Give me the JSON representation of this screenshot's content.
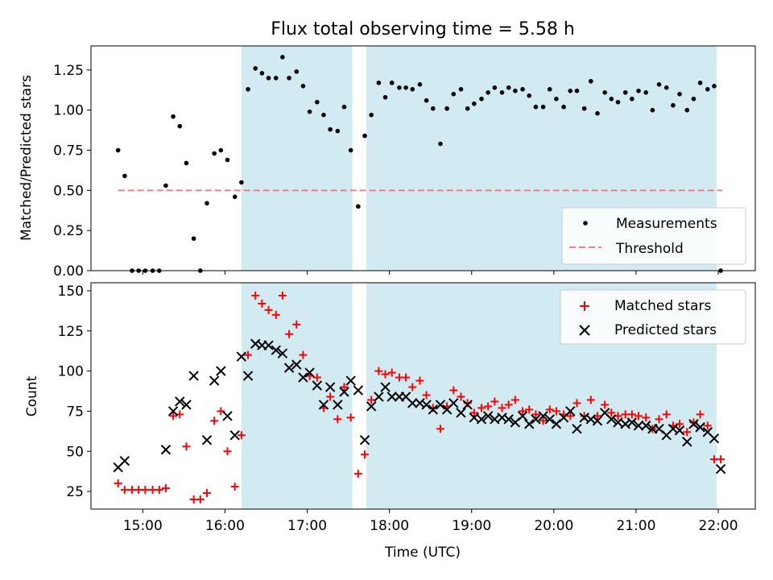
{
  "title": "Flux total observing time = 5.58 h",
  "colors": {
    "band": "#add8e6",
    "measurement": "#000000",
    "threshold": "#f08080",
    "matched": "#ff0000",
    "predicted": "#000000"
  },
  "x_tick_labels": [
    "15:00",
    "16:00",
    "17:00",
    "18:00",
    "19:00",
    "20:00",
    "21:00",
    "22:00"
  ],
  "chart_data": [
    {
      "type": "scatter",
      "ylabel": "Matched/Predicted stars",
      "xlabel": "",
      "x_unit": "hours (UTC)",
      "xlim": [
        14.37,
        22.45
      ],
      "ylim": [
        0,
        1.4
      ],
      "y_ticks": [
        0.0,
        0.25,
        0.5,
        0.75,
        1.0,
        1.25
      ],
      "y_tick_labels": [
        "0.00",
        "0.25",
        "0.50",
        "0.75",
        "1.00",
        "1.25"
      ],
      "legend": {
        "position": "lower right",
        "entries": [
          "Measurements",
          "Threshold"
        ]
      },
      "shaded_intervals": [
        [
          16.2,
          17.55
        ],
        [
          17.72,
          21.98
        ]
      ],
      "threshold": {
        "name": "Threshold",
        "y": 0.5,
        "x_range": [
          14.7,
          22.05
        ]
      },
      "series": [
        {
          "name": "Measurements",
          "points": [
            [
              14.7,
              0.75
            ],
            [
              14.78,
              0.59
            ],
            [
              14.87,
              0.0
            ],
            [
              14.95,
              0.0
            ],
            [
              15.03,
              0.0
            ],
            [
              15.12,
              0.0
            ],
            [
              15.2,
              0.0
            ],
            [
              15.28,
              0.53
            ],
            [
              15.37,
              0.96
            ],
            [
              15.45,
              0.9
            ],
            [
              15.53,
              0.67
            ],
            [
              15.62,
              0.2
            ],
            [
              15.7,
              0.0
            ],
            [
              15.78,
              0.42
            ],
            [
              15.87,
              0.73
            ],
            [
              15.95,
              0.75
            ],
            [
              16.03,
              0.69
            ],
            [
              16.12,
              0.46
            ],
            [
              16.2,
              0.55
            ],
            [
              16.28,
              1.13
            ],
            [
              16.37,
              1.26
            ],
            [
              16.45,
              1.23
            ],
            [
              16.53,
              1.2
            ],
            [
              16.62,
              1.2
            ],
            [
              16.7,
              1.33
            ],
            [
              16.78,
              1.2
            ],
            [
              16.87,
              1.24
            ],
            [
              16.95,
              1.15
            ],
            [
              17.03,
              0.99
            ],
            [
              17.12,
              1.05
            ],
            [
              17.2,
              0.97
            ],
            [
              17.28,
              0.88
            ],
            [
              17.37,
              0.87
            ],
            [
              17.45,
              1.02
            ],
            [
              17.53,
              0.75
            ],
            [
              17.62,
              0.4
            ],
            [
              17.7,
              0.84
            ],
            [
              17.78,
              0.97
            ],
            [
              17.87,
              1.17
            ],
            [
              17.95,
              1.08
            ],
            [
              18.03,
              1.17
            ],
            [
              18.12,
              1.14
            ],
            [
              18.2,
              1.14
            ],
            [
              18.28,
              1.13
            ],
            [
              18.37,
              1.16
            ],
            [
              18.45,
              1.06
            ],
            [
              18.53,
              1.01
            ],
            [
              18.62,
              0.79
            ],
            [
              18.7,
              1.01
            ],
            [
              18.78,
              1.1
            ],
            [
              18.87,
              1.13
            ],
            [
              18.95,
              1.01
            ],
            [
              19.03,
              1.04
            ],
            [
              19.12,
              1.07
            ],
            [
              19.2,
              1.11
            ],
            [
              19.28,
              1.14
            ],
            [
              19.37,
              1.11
            ],
            [
              19.45,
              1.14
            ],
            [
              19.53,
              1.12
            ],
            [
              19.62,
              1.13
            ],
            [
              19.7,
              1.09
            ],
            [
              19.78,
              1.02
            ],
            [
              19.87,
              1.02
            ],
            [
              19.95,
              1.13
            ],
            [
              20.03,
              1.07
            ],
            [
              20.12,
              1.02
            ],
            [
              20.2,
              1.12
            ],
            [
              20.28,
              1.12
            ],
            [
              20.37,
              1.01
            ],
            [
              20.45,
              1.18
            ],
            [
              20.53,
              0.98
            ],
            [
              20.62,
              1.11
            ],
            [
              20.7,
              1.07
            ],
            [
              20.78,
              1.05
            ],
            [
              20.87,
              1.11
            ],
            [
              20.95,
              1.07
            ],
            [
              21.03,
              1.12
            ],
            [
              21.12,
              1.11
            ],
            [
              21.2,
              1.0
            ],
            [
              21.28,
              1.16
            ],
            [
              21.37,
              1.14
            ],
            [
              21.45,
              1.03
            ],
            [
              21.53,
              1.1
            ],
            [
              21.62,
              1.0
            ],
            [
              21.7,
              1.07
            ],
            [
              21.78,
              1.17
            ],
            [
              21.87,
              1.13
            ],
            [
              21.95,
              1.15
            ],
            [
              22.03,
              0.0
            ]
          ]
        }
      ]
    },
    {
      "type": "scatter",
      "ylabel": "Count",
      "xlabel": "Time (UTC)",
      "x_unit": "hours (UTC)",
      "xlim": [
        14.37,
        22.45
      ],
      "ylim": [
        14,
        155
      ],
      "y_ticks": [
        25,
        50,
        75,
        100,
        125,
        150
      ],
      "y_tick_labels": [
        "25",
        "50",
        "75",
        "100",
        "125",
        "150"
      ],
      "legend": {
        "position": "upper right",
        "entries": [
          "Matched stars",
          "Predicted stars"
        ]
      },
      "shaded_intervals": [
        [
          16.2,
          17.55
        ],
        [
          17.72,
          21.98
        ]
      ],
      "series": [
        {
          "name": "Matched stars",
          "marker": "plus",
          "points": [
            [
              14.7,
              30
            ],
            [
              14.78,
              26
            ],
            [
              14.87,
              26
            ],
            [
              14.95,
              26
            ],
            [
              15.03,
              26
            ],
            [
              15.12,
              26
            ],
            [
              15.2,
              26
            ],
            [
              15.28,
              27
            ],
            [
              15.37,
              72
            ],
            [
              15.45,
              73
            ],
            [
              15.53,
              53
            ],
            [
              15.62,
              20
            ],
            [
              15.7,
              20
            ],
            [
              15.78,
              24
            ],
            [
              15.87,
              69
            ],
            [
              15.95,
              75
            ],
            [
              16.03,
              50
            ],
            [
              16.12,
              28
            ],
            [
              16.2,
              60
            ],
            [
              16.28,
              110
            ],
            [
              16.37,
              147
            ],
            [
              16.45,
              142
            ],
            [
              16.53,
              138
            ],
            [
              16.62,
              135
            ],
            [
              16.7,
              147
            ],
            [
              16.78,
              123
            ],
            [
              16.87,
              129
            ],
            [
              16.95,
              110
            ],
            [
              17.03,
              97
            ],
            [
              17.12,
              96
            ],
            [
              17.2,
              77
            ],
            [
              17.28,
              84
            ],
            [
              17.37,
              70
            ],
            [
              17.45,
              90
            ],
            [
              17.53,
              71
            ],
            [
              17.62,
              36
            ],
            [
              17.7,
              48
            ],
            [
              17.78,
              82
            ],
            [
              17.87,
              100
            ],
            [
              17.95,
              98
            ],
            [
              18.03,
              99
            ],
            [
              18.12,
              96
            ],
            [
              18.2,
              96
            ],
            [
              18.28,
              90
            ],
            [
              18.37,
              94
            ],
            [
              18.45,
              85
            ],
            [
              18.53,
              77
            ],
            [
              18.62,
              64
            ],
            [
              18.7,
              78
            ],
            [
              18.78,
              88
            ],
            [
              18.87,
              84
            ],
            [
              18.95,
              80
            ],
            [
              19.03,
              74
            ],
            [
              19.12,
              77
            ],
            [
              19.2,
              78
            ],
            [
              19.28,
              81
            ],
            [
              19.37,
              77
            ],
            [
              19.45,
              79
            ],
            [
              19.53,
              82
            ],
            [
              19.62,
              75
            ],
            [
              19.7,
              76
            ],
            [
              19.78,
              73
            ],
            [
              19.87,
              69
            ],
            [
              19.95,
              76
            ],
            [
              20.03,
              75
            ],
            [
              20.12,
              73
            ],
            [
              20.2,
              72
            ],
            [
              20.28,
              80
            ],
            [
              20.37,
              72
            ],
            [
              20.45,
              82
            ],
            [
              20.53,
              72
            ],
            [
              20.62,
              79
            ],
            [
              20.7,
              74
            ],
            [
              20.78,
              72
            ],
            [
              20.87,
              73
            ],
            [
              20.95,
              73
            ],
            [
              21.03,
              72
            ],
            [
              21.12,
              71
            ],
            [
              21.2,
              64
            ],
            [
              21.28,
              70
            ],
            [
              21.37,
              73
            ],
            [
              21.45,
              66
            ],
            [
              21.53,
              67
            ],
            [
              21.62,
              62
            ],
            [
              21.7,
              68
            ],
            [
              21.78,
              73
            ],
            [
              21.87,
              66
            ],
            [
              21.95,
              45
            ],
            [
              22.03,
              45
            ]
          ]
        },
        {
          "name": "Predicted stars",
          "marker": "x",
          "points": [
            [
              14.7,
              40
            ],
            [
              14.78,
              44
            ],
            [
              15.28,
              51
            ],
            [
              15.37,
              75
            ],
            [
              15.45,
              81
            ],
            [
              15.53,
              79
            ],
            [
              15.62,
              97
            ],
            [
              15.78,
              57
            ],
            [
              15.87,
              94
            ],
            [
              15.95,
              100
            ],
            [
              16.03,
              72
            ],
            [
              16.12,
              60
            ],
            [
              16.2,
              109
            ],
            [
              16.28,
              97
            ],
            [
              16.37,
              117
            ],
            [
              16.45,
              116
            ],
            [
              16.53,
              116
            ],
            [
              16.62,
              113
            ],
            [
              16.7,
              111
            ],
            [
              16.78,
              102
            ],
            [
              16.87,
              104
            ],
            [
              16.95,
              96
            ],
            [
              17.03,
              99
            ],
            [
              17.12,
              91
            ],
            [
              17.2,
              79
            ],
            [
              17.28,
              90
            ],
            [
              17.37,
              79
            ],
            [
              17.45,
              87
            ],
            [
              17.53,
              94
            ],
            [
              17.62,
              88
            ],
            [
              17.7,
              57
            ],
            [
              17.78,
              78
            ],
            [
              17.87,
              84
            ],
            [
              17.95,
              90
            ],
            [
              18.03,
              84
            ],
            [
              18.12,
              84
            ],
            [
              18.2,
              84
            ],
            [
              18.28,
              80
            ],
            [
              18.37,
              80
            ],
            [
              18.45,
              79
            ],
            [
              18.53,
              76
            ],
            [
              18.62,
              79
            ],
            [
              18.7,
              76
            ],
            [
              18.78,
              80
            ],
            [
              18.87,
              74
            ],
            [
              18.95,
              79
            ],
            [
              19.03,
              71
            ],
            [
              19.12,
              70
            ],
            [
              19.2,
              72
            ],
            [
              19.28,
              70
            ],
            [
              19.37,
              71
            ],
            [
              19.45,
              70
            ],
            [
              19.53,
              68
            ],
            [
              19.62,
              72
            ],
            [
              19.7,
              67
            ],
            [
              19.78,
              70
            ],
            [
              19.87,
              72
            ],
            [
              19.95,
              70
            ],
            [
              20.03,
              67
            ],
            [
              20.12,
              71
            ],
            [
              20.2,
              75
            ],
            [
              20.28,
              64
            ],
            [
              20.37,
              71
            ],
            [
              20.45,
              70
            ],
            [
              20.53,
              69
            ],
            [
              20.62,
              74
            ],
            [
              20.7,
              70
            ],
            [
              20.78,
              68
            ],
            [
              20.87,
              67
            ],
            [
              20.95,
              68
            ],
            [
              21.03,
              66
            ],
            [
              21.12,
              66
            ],
            [
              21.2,
              64
            ],
            [
              21.28,
              64
            ],
            [
              21.37,
              60
            ],
            [
              21.45,
              64
            ],
            [
              21.53,
              63
            ],
            [
              21.62,
              56
            ],
            [
              21.7,
              67
            ],
            [
              21.78,
              65
            ],
            [
              21.87,
              62
            ],
            [
              21.95,
              58
            ],
            [
              22.03,
              39
            ]
          ]
        }
      ]
    }
  ]
}
